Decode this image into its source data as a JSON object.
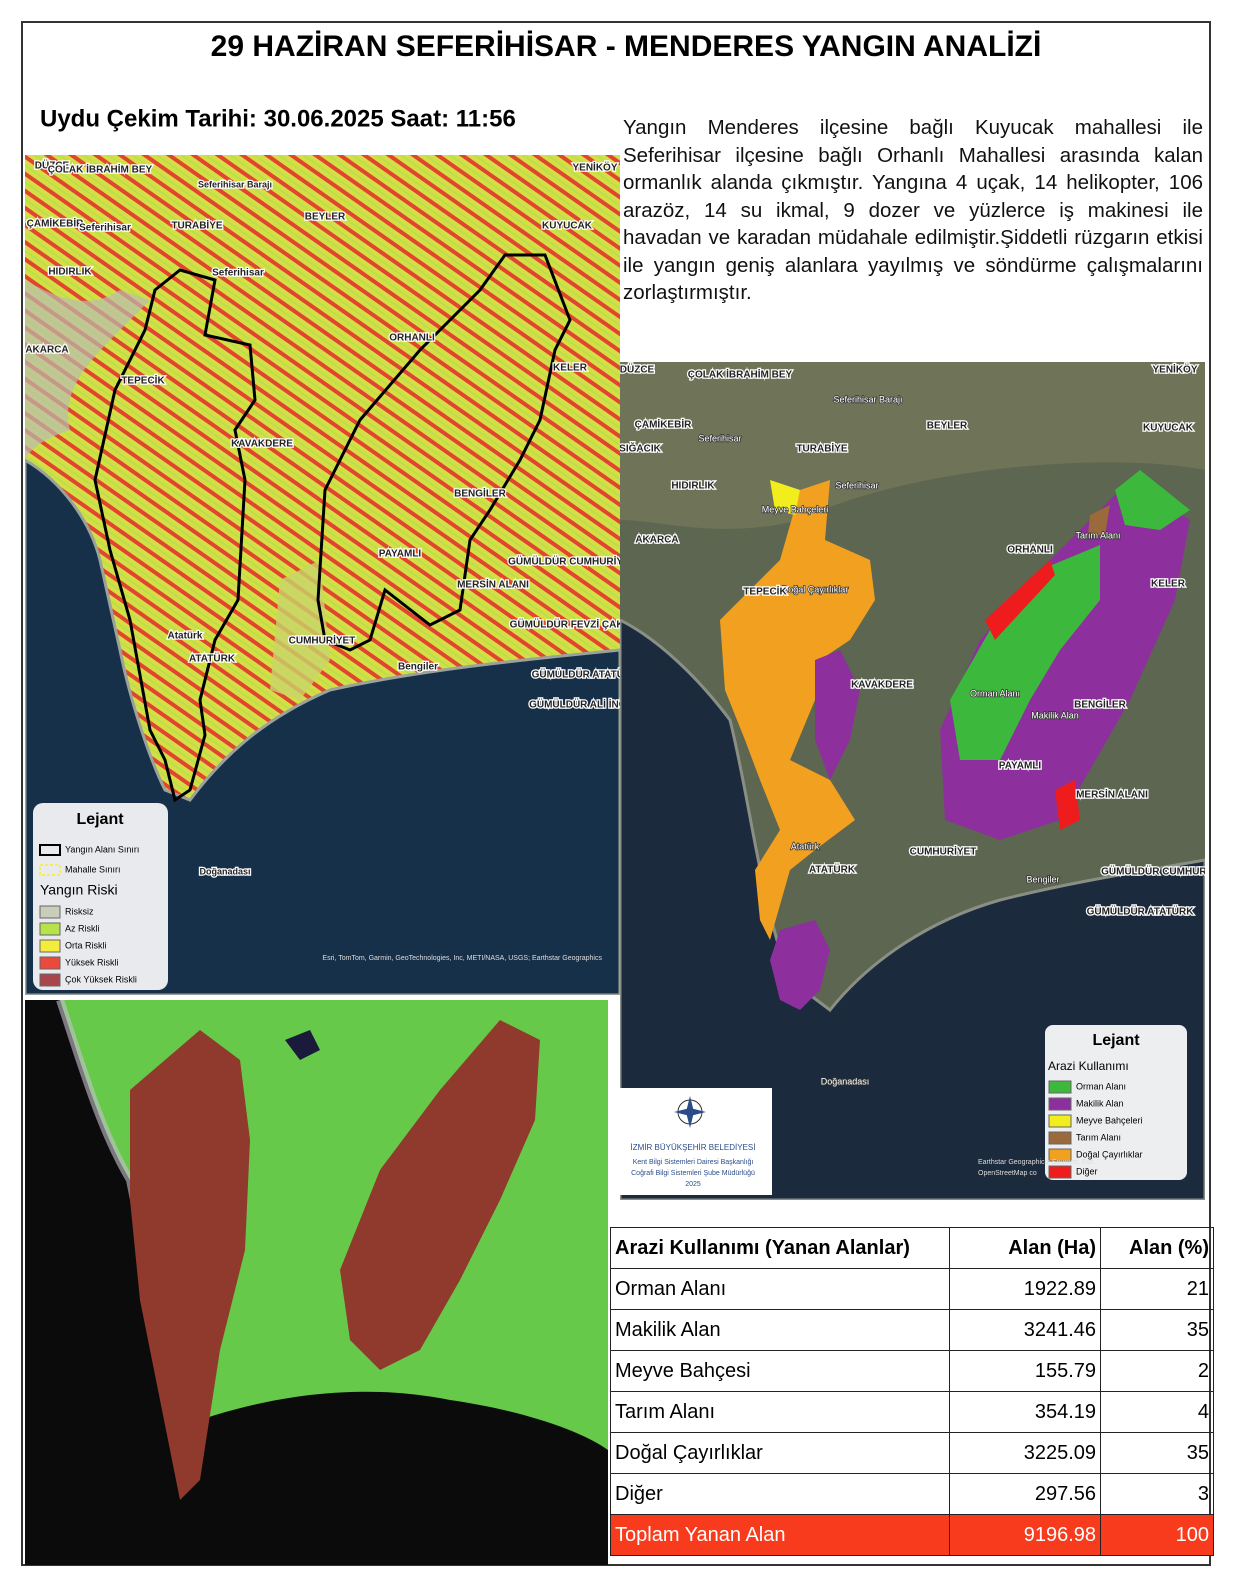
{
  "header": {
    "title": "29 HAZİRAN SEFERİHİSAR - MENDERES YANGIN ANALİZİ",
    "date_line": "Uydu Çekim Tarihi: 30.06.2025 Saat: 11:56"
  },
  "description": "Yangın Menderes ilçesine bağlı Kuyucak mahallesi ile Seferihisar ilçesine bağlı Orhanlı Mahallesi arasında kalan ormanlık alanda çıkmıştır. Yangına 4 uçak, 14 helikopter, 106 arazöz, 14 su ikmal, 9 dozer ve yüzlerce iş makinesi ile havadan ve karadan müdahale edilmiştir.Şiddetli rüzgarın etkisi ile yangın geniş alanlara yayılmış ve söndürme çalışmalarını zorlaştırmıştır.",
  "map_risk": {
    "places": [
      "DÜZCE",
      "ÇOLAK İBRAHİM BEY",
      "YENİKÖY",
      "Seferihisar Barajı",
      "BEYLER",
      "TURABİYE",
      "ÇAMİKEBİR",
      "Seferihisar",
      "KUYUCAK",
      "HIDIRLIK",
      "Seferihisar",
      "ORHANLI",
      "AKARCA",
      "KELER",
      "TEPECİK",
      "KAVAKDERE",
      "BENGİLER",
      "PAYAMLI",
      "GÜMÜLDÜR CUMHURİYET",
      "MERSİN ALANI",
      "GÜMÜLDÜR FEVZİ ÇAKMAK",
      "CUMHURİYET",
      "Atatürk",
      "ATATÜRK",
      "Bengiler",
      "GÜMÜLDÜR ATATÜRK",
      "GÜMÜLDÜR ALİ İNÖNÜ",
      "Doğanadası"
    ],
    "legend": {
      "title": "Lejant",
      "lines": [
        {
          "label": "Yangın Alanı Sınırı",
          "color": "#000000"
        },
        {
          "label": "Mahalle Sınırı",
          "color": "#f2ee5a"
        }
      ],
      "subtitle": "Yangın Riski",
      "classes": [
        {
          "label": "Risksiz",
          "color": "#c9cdb9"
        },
        {
          "label": "Az Riskli",
          "color": "#b6e34a"
        },
        {
          "label": "Orta Riskli",
          "color": "#f4ec3c"
        },
        {
          "label": "Yüksek Riskli",
          "color": "#ea4a3c"
        },
        {
          "label": "Çok Yüksek Riskli",
          "color": "#a8464c"
        }
      ]
    },
    "credit": "Esri, TomTom, Garmin, GeoTechnologies, Inc, METI/NASA, USGS; Earthstar Geographics"
  },
  "map_landuse": {
    "places": [
      "DÜZCE",
      "ÇOLAK İBRAHİM BEY",
      "YENİKÖY",
      "Seferihisar Barajı",
      "BEYLER",
      "ÇAMİKEBİR",
      "Seferihisar",
      "TURABİYE",
      "KUYUCAK",
      "SIĞACIK",
      "HIDIRLIK",
      "Seferihisar",
      "Meyve Bahçeleri",
      "ORHANLI",
      "Tarım Alanı",
      "AKARCA",
      "Doğal Çayırlıklar",
      "TEPECİK",
      "KELER",
      "KAVAKDERE",
      "Orman Alanı",
      "BENGİLER",
      "Makilik Alan",
      "PAYAMLI",
      "MERSİN ALANI",
      "Atatürk",
      "CUMHURİYET",
      "ATATÜRK",
      "Bengiler",
      "GÜMÜLDÜR CUMHURİYET",
      "GÜMÜLDÜR ATATÜRK",
      "Doğanadası"
    ],
    "legend": {
      "title": "Lejant",
      "subtitle": "Arazi Kullanımı",
      "classes": [
        {
          "label": "Orman Alanı",
          "color": "#3cb93c"
        },
        {
          "label": "Makilik Alan",
          "color": "#8e2f9e"
        },
        {
          "label": "Meyve Bahçeleri",
          "color": "#f2ee1e"
        },
        {
          "label": "Tarım Alanı",
          "color": "#9a6a3c"
        },
        {
          "label": "Doğal Çayırlıklar",
          "color": "#f2a020"
        },
        {
          "label": "Diğer",
          "color": "#ee1c1c"
        }
      ]
    },
    "credit": [
      "Earthstar Geographics; Sources: Esri,",
      "OpenStreetMap co"
    ],
    "logo": {
      "org": "İZMİR BÜYÜKŞEHİR BELEDİYESİ",
      "lines": [
        "Kent Bilgi Sistemleri Dairesi Başkanlığı",
        "Coğrafi Bilgi Sistemleri Şube Müdürlüğü",
        "2025"
      ]
    }
  },
  "table": {
    "header": [
      "Arazi Kullanımı (Yanan Alanlar)",
      "Alan (Ha)",
      "Alan  (%)"
    ],
    "rows": [
      [
        "Orman Alanı",
        1922.89,
        21
      ],
      [
        "Makilik Alan",
        3241.46,
        35
      ],
      [
        "Meyve Bahçesi",
        155.79,
        2
      ],
      [
        "Tarım Alanı",
        354.19,
        4
      ],
      [
        "Doğal Çayırlıklar",
        3225.09,
        35
      ],
      [
        "Diğer",
        297.56,
        3
      ]
    ],
    "total": [
      "Toplam Yanan Alan",
      9196.98,
      100
    ]
  }
}
